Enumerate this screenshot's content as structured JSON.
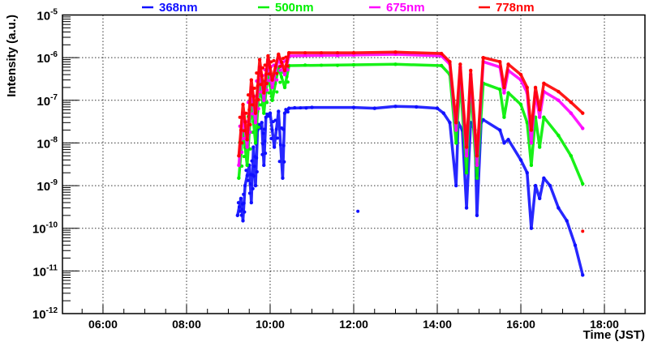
{
  "chart_data": {
    "type": "scatter",
    "title": "",
    "xlabel": "Time (JST)",
    "ylabel": "Intensity (a.u.)",
    "xscale": "linear",
    "yscale": "log",
    "xlim": [
      5.03,
      18.97
    ],
    "ylim": [
      1e-12,
      1e-05
    ],
    "grid": true,
    "legend_placement": "top",
    "x_ticks": [
      {
        "value": 6,
        "label": "06:00"
      },
      {
        "value": 8,
        "label": "08:00"
      },
      {
        "value": 10,
        "label": "10:00"
      },
      {
        "value": 12,
        "label": "12:00"
      },
      {
        "value": 14,
        "label": "14:00"
      },
      {
        "value": 16,
        "label": "16:00"
      },
      {
        "value": 18,
        "label": "18:00"
      }
    ],
    "y_ticks": [
      {
        "value": 1e-05,
        "base": "10",
        "exp": "-5"
      },
      {
        "value": 1e-06,
        "base": "10",
        "exp": "-6"
      },
      {
        "value": 1e-07,
        "base": "10",
        "exp": "-7"
      },
      {
        "value": 1e-08,
        "base": "10",
        "exp": "-8"
      },
      {
        "value": 1e-09,
        "base": "10",
        "exp": "-9"
      },
      {
        "value": 1e-10,
        "base": "10",
        "exp": "-10"
      },
      {
        "value": 1e-11,
        "base": "10",
        "exp": "-11"
      },
      {
        "value": 1e-12,
        "base": "10",
        "exp": "-12"
      }
    ],
    "series": [
      {
        "name": "368nm",
        "color": "#1010ff",
        "points": [
          [
            9.22,
            2e-10
          ],
          [
            9.3,
            5e-10
          ],
          [
            9.35,
            1.5e-10
          ],
          [
            9.4,
            1e-09
          ],
          [
            9.5,
            3e-09
          ],
          [
            9.55,
            4e-10
          ],
          [
            9.6,
            8e-09
          ],
          [
            9.65,
            1e-09
          ],
          [
            9.7,
            2e-08
          ],
          [
            9.8,
            3e-08
          ],
          [
            9.85,
            3e-09
          ],
          [
            9.9,
            4e-08
          ],
          [
            10.0,
            5e-08
          ],
          [
            10.1,
            8e-09
          ],
          [
            10.2,
            5.5e-08
          ],
          [
            10.3,
            1.5e-09
          ],
          [
            10.35,
            5e-08
          ],
          [
            10.45,
            6.5e-08
          ],
          [
            11.0,
            6.8e-08
          ],
          [
            12.0,
            6.8e-08
          ],
          [
            12.5,
            6.5e-08
          ],
          [
            13.0,
            7.2e-08
          ],
          [
            13.5,
            7e-08
          ],
          [
            14.0,
            6.5e-08
          ],
          [
            14.15,
            5e-08
          ],
          [
            14.3,
            3e-08
          ],
          [
            14.45,
            1e-09
          ],
          [
            14.5,
            3e-08
          ],
          [
            14.6,
            2e-08
          ],
          [
            14.7,
            3e-10
          ],
          [
            14.8,
            3e-08
          ],
          [
            14.9,
            2e-08
          ],
          [
            14.95,
            2e-10
          ],
          [
            15.05,
            3e-08
          ],
          [
            15.1,
            3.5e-08
          ],
          [
            15.5,
            2e-08
          ],
          [
            15.6,
            1e-08
          ],
          [
            15.7,
            1.2e-08
          ],
          [
            16.0,
            4e-09
          ],
          [
            16.15,
            2e-09
          ],
          [
            16.25,
            1e-10
          ],
          [
            16.35,
            1e-09
          ],
          [
            16.45,
            5e-10
          ],
          [
            16.55,
            1.5e-09
          ],
          [
            16.7,
            1e-09
          ],
          [
            16.9,
            3e-10
          ],
          [
            17.1,
            1.5e-10
          ],
          [
            17.3,
            4e-11
          ],
          [
            17.48,
            8e-12
          ]
        ],
        "isolated": [
          [
            12.1,
            2.5e-10
          ]
        ]
      },
      {
        "name": "500nm",
        "color": "#00f000",
        "points": [
          [
            9.25,
            1.5e-09
          ],
          [
            9.35,
            2e-08
          ],
          [
            9.45,
            3e-09
          ],
          [
            9.55,
            1e-07
          ],
          [
            9.65,
            1e-08
          ],
          [
            9.75,
            3e-07
          ],
          [
            9.85,
            5e-08
          ],
          [
            9.95,
            5e-07
          ],
          [
            10.05,
            1e-07
          ],
          [
            10.2,
            6e-07
          ],
          [
            10.35,
            2e-07
          ],
          [
            10.45,
            6.5e-07
          ],
          [
            12.0,
            6.8e-07
          ],
          [
            13.0,
            7e-07
          ],
          [
            14.1,
            6.5e-07
          ],
          [
            14.3,
            4e-07
          ],
          [
            14.45,
            1e-08
          ],
          [
            14.55,
            3e-07
          ],
          [
            14.7,
            2e-09
          ],
          [
            14.8,
            2e-07
          ],
          [
            14.95,
            1.5e-09
          ],
          [
            15.1,
            2.5e-07
          ],
          [
            15.5,
            1.8e-07
          ],
          [
            15.6,
            4e-08
          ],
          [
            15.7,
            1.5e-07
          ],
          [
            16.0,
            8e-08
          ],
          [
            16.15,
            3e-08
          ],
          [
            16.25,
            3e-09
          ],
          [
            16.35,
            4e-08
          ],
          [
            16.45,
            8e-09
          ],
          [
            16.55,
            4e-08
          ],
          [
            16.9,
            1.5e-08
          ],
          [
            17.2,
            5e-09
          ],
          [
            17.48,
            1.1e-09
          ]
        ],
        "isolated": []
      },
      {
        "name": "675nm",
        "color": "#ff00ff",
        "points": [
          [
            9.25,
            3e-09
          ],
          [
            9.35,
            5e-08
          ],
          [
            9.45,
            8e-09
          ],
          [
            9.55,
            2e-07
          ],
          [
            9.65,
            3e-08
          ],
          [
            9.75,
            6e-07
          ],
          [
            9.85,
            1e-07
          ],
          [
            9.95,
            9e-07
          ],
          [
            10.05,
            2e-07
          ],
          [
            10.2,
            1e-06
          ],
          [
            10.35,
            4e-07
          ],
          [
            10.45,
            1.1e-06
          ],
          [
            12.0,
            1.15e-06
          ],
          [
            13.0,
            1.2e-06
          ],
          [
            14.1,
            1.1e-06
          ],
          [
            14.3,
            7e-07
          ],
          [
            14.45,
            2e-08
          ],
          [
            14.55,
            6e-07
          ],
          [
            14.7,
            5e-09
          ],
          [
            14.8,
            4e-07
          ],
          [
            14.95,
            3e-09
          ],
          [
            15.1,
            8e-07
          ],
          [
            15.5,
            6e-07
          ],
          [
            15.6,
            1.5e-07
          ],
          [
            15.7,
            5e-07
          ],
          [
            16.0,
            3e-07
          ],
          [
            16.15,
            1.5e-07
          ],
          [
            16.25,
            1e-08
          ],
          [
            16.35,
            1.5e-07
          ],
          [
            16.45,
            4e-08
          ],
          [
            16.55,
            1.6e-07
          ],
          [
            16.9,
            1e-07
          ],
          [
            17.2,
            5e-08
          ],
          [
            17.48,
            2.2e-08
          ]
        ],
        "isolated": []
      },
      {
        "name": "778nm",
        "color": "#ff0000",
        "points": [
          [
            9.25,
            5e-09
          ],
          [
            9.35,
            8e-08
          ],
          [
            9.45,
            1.2e-08
          ],
          [
            9.55,
            3e-07
          ],
          [
            9.65,
            5e-08
          ],
          [
            9.75,
            9e-07
          ],
          [
            9.85,
            1.5e-07
          ],
          [
            9.95,
            1.1e-06
          ],
          [
            10.05,
            3e-07
          ],
          [
            10.2,
            1.2e-06
          ],
          [
            10.35,
            5e-07
          ],
          [
            10.45,
            1.3e-06
          ],
          [
            12.0,
            1.3e-06
          ],
          [
            13.0,
            1.35e-06
          ],
          [
            14.1,
            1.25e-06
          ],
          [
            14.3,
            8e-07
          ],
          [
            14.45,
            3e-08
          ],
          [
            14.55,
            7e-07
          ],
          [
            14.7,
            8e-09
          ],
          [
            14.8,
            5e-07
          ],
          [
            14.95,
            5e-09
          ],
          [
            15.1,
            1e-06
          ],
          [
            15.5,
            8e-07
          ],
          [
            15.6,
            2e-07
          ],
          [
            15.7,
            7e-07
          ],
          [
            16.0,
            4e-07
          ],
          [
            16.15,
            2e-07
          ],
          [
            16.25,
            2e-08
          ],
          [
            16.35,
            2e-07
          ],
          [
            16.45,
            6e-08
          ],
          [
            16.55,
            2.5e-07
          ],
          [
            16.9,
            1.6e-07
          ],
          [
            17.2,
            9e-08
          ],
          [
            17.48,
            5e-08
          ]
        ],
        "isolated": [
          [
            17.48,
            8.5e-11
          ]
        ]
      }
    ]
  }
}
